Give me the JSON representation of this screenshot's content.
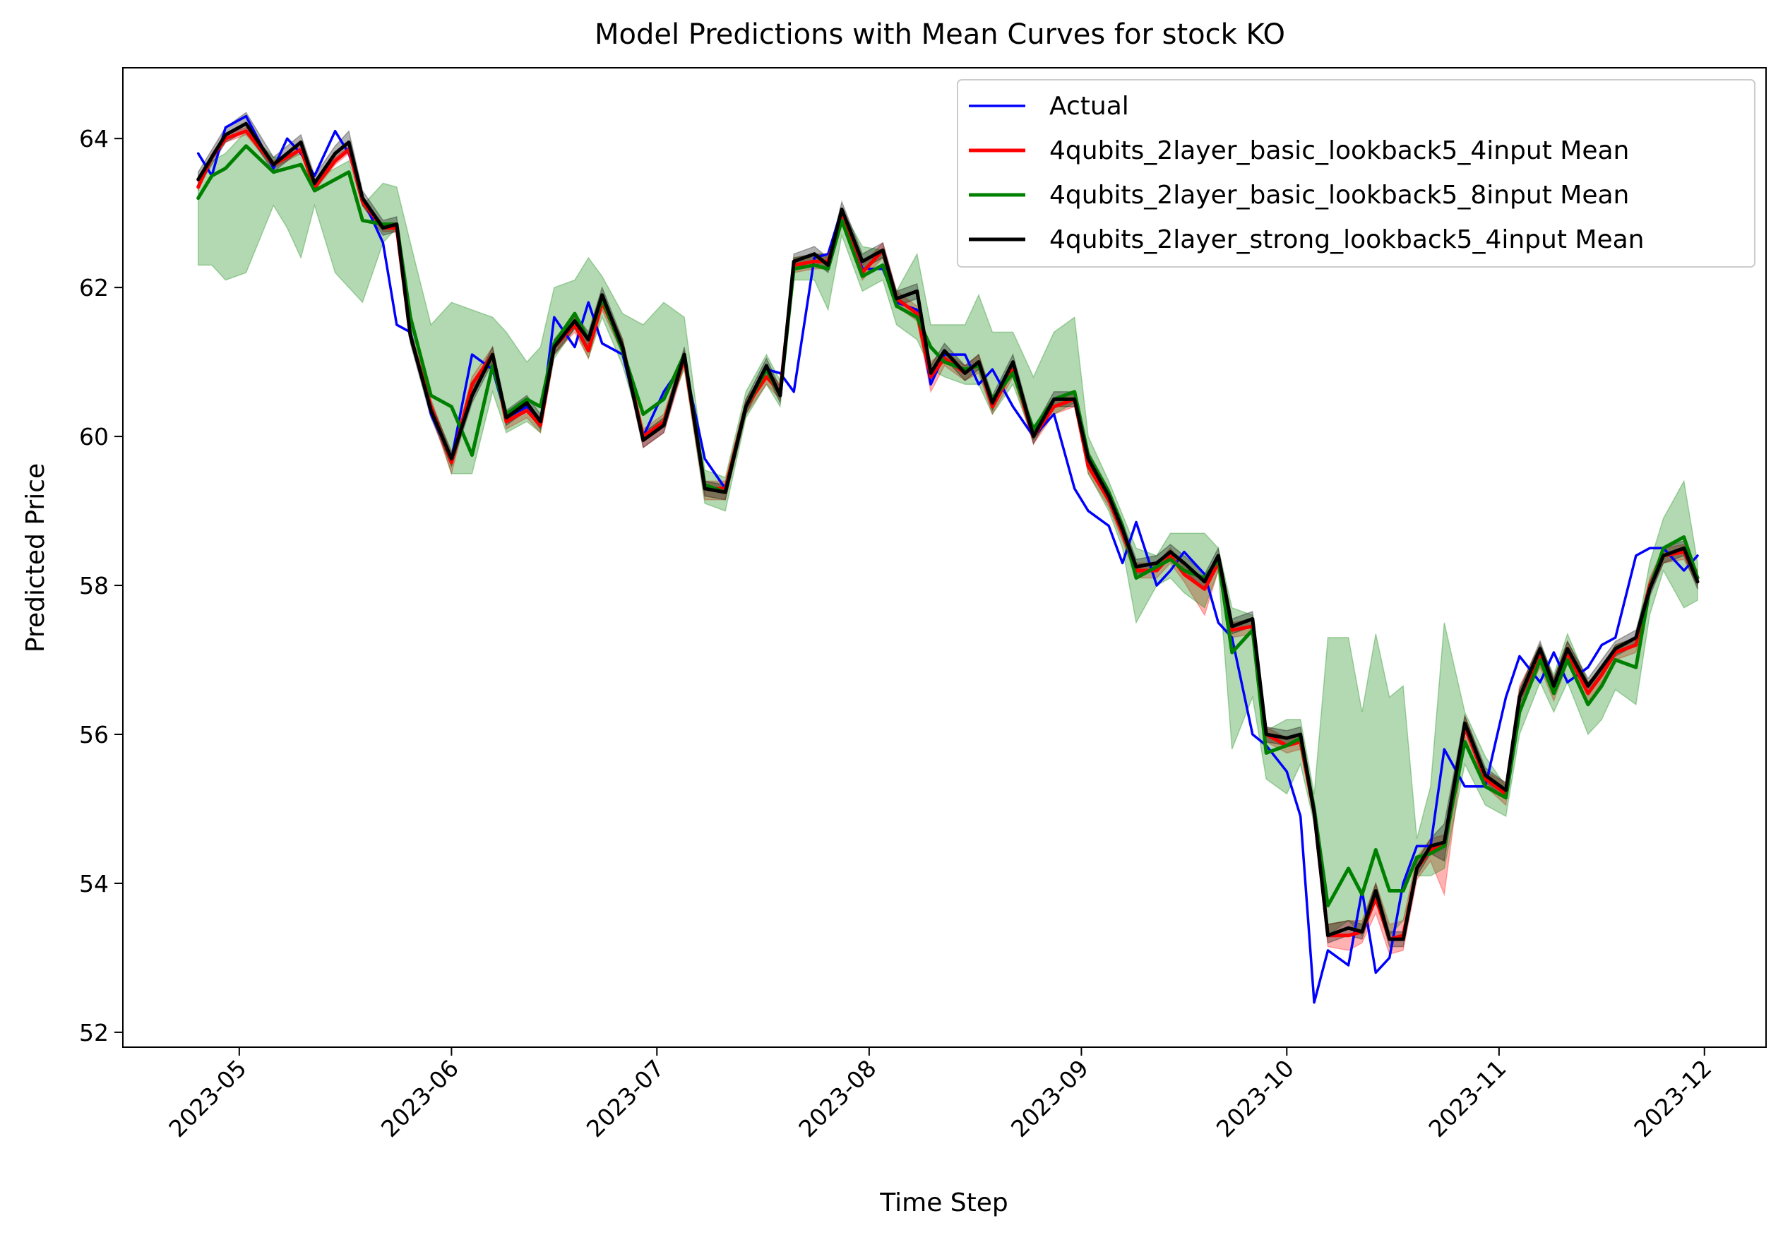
{
  "chart_data": {
    "type": "line",
    "title": "Model Predictions with Mean Curves for stock KO",
    "xlabel": "Time Step",
    "ylabel": "Predicted Price",
    "x_ticks": [
      "2023-05",
      "2023-06",
      "2023-07",
      "2023-08",
      "2023-09",
      "2023-10",
      "2023-11",
      "2023-12"
    ],
    "y_ticks": [
      52,
      54,
      56,
      58,
      60,
      62,
      64
    ],
    "xlim": [
      "2023-04-14",
      "2023-12-10"
    ],
    "ylim": [
      51.8,
      64.95
    ],
    "grid": false,
    "legend_position": "top-right",
    "x": [
      "2023-04-25",
      "2023-04-27",
      "2023-04-29",
      "2023-05-02",
      "2023-05-06",
      "2023-05-08",
      "2023-05-10",
      "2023-05-12",
      "2023-05-15",
      "2023-05-17",
      "2023-05-19",
      "2023-05-22",
      "2023-05-24",
      "2023-05-26",
      "2023-05-29",
      "2023-06-01",
      "2023-06-04",
      "2023-06-07",
      "2023-06-09",
      "2023-06-12",
      "2023-06-14",
      "2023-06-16",
      "2023-06-19",
      "2023-06-21",
      "2023-06-23",
      "2023-06-26",
      "2023-06-29",
      "2023-07-02",
      "2023-07-05",
      "2023-07-08",
      "2023-07-11",
      "2023-07-14",
      "2023-07-17",
      "2023-07-19",
      "2023-07-21",
      "2023-07-24",
      "2023-07-26",
      "2023-07-28",
      "2023-07-31",
      "2023-08-03",
      "2023-08-05",
      "2023-08-08",
      "2023-08-10",
      "2023-08-12",
      "2023-08-15",
      "2023-08-17",
      "2023-08-19",
      "2023-08-22",
      "2023-08-25",
      "2023-08-28",
      "2023-08-31",
      "2023-09-02",
      "2023-09-05",
      "2023-09-07",
      "2023-09-09",
      "2023-09-12",
      "2023-09-14",
      "2023-09-16",
      "2023-09-19",
      "2023-09-21",
      "2023-09-23",
      "2023-09-26",
      "2023-09-28",
      "2023-10-01",
      "2023-10-03",
      "2023-10-05",
      "2023-10-07",
      "2023-10-10",
      "2023-10-12",
      "2023-10-14",
      "2023-10-16",
      "2023-10-18",
      "2023-10-20",
      "2023-10-22",
      "2023-10-24",
      "2023-10-27",
      "2023-10-30",
      "2023-11-02",
      "2023-11-04",
      "2023-11-07",
      "2023-11-09",
      "2023-11-11",
      "2023-11-14",
      "2023-11-16",
      "2023-11-18",
      "2023-11-21",
      "2023-11-23",
      "2023-11-25",
      "2023-11-28",
      "2023-11-30"
    ],
    "series": [
      {
        "name": "Actual",
        "color": "#0000ff",
        "values": [
          63.8,
          63.5,
          64.15,
          64.3,
          63.6,
          64.0,
          63.8,
          63.5,
          64.1,
          63.8,
          63.2,
          62.6,
          61.5,
          61.4,
          60.3,
          59.7,
          61.1,
          60.9,
          60.25,
          60.4,
          60.15,
          61.6,
          61.2,
          61.8,
          61.25,
          61.1,
          60.0,
          60.6,
          61.0,
          59.7,
          59.3,
          60.4,
          60.9,
          60.85,
          60.6,
          62.4,
          62.45,
          63.05,
          62.25,
          62.25,
          61.8,
          61.7,
          60.7,
          61.1,
          61.1,
          60.7,
          60.9,
          60.4,
          60.0,
          60.3,
          59.3,
          59.0,
          58.8,
          58.3,
          58.85,
          58.0,
          58.2,
          58.45,
          58.15,
          57.5,
          57.3,
          56.0,
          55.85,
          55.5,
          54.9,
          52.4,
          53.1,
          52.9,
          53.9,
          52.8,
          53.0,
          54.0,
          54.5,
          54.5,
          55.8,
          55.3,
          55.3,
          56.5,
          57.05,
          56.7,
          57.1,
          56.7,
          56.9,
          57.2,
          57.3,
          58.4,
          58.5,
          58.5,
          58.2,
          58.4
        ]
      },
      {
        "name": "4qubits_2layer_basic_lookback5_4input Mean",
        "color": "#ff0000",
        "values": [
          63.35,
          63.75,
          64.0,
          64.1,
          63.65,
          63.75,
          63.85,
          63.35,
          63.7,
          63.85,
          63.15,
          62.8,
          62.8,
          61.35,
          60.4,
          59.65,
          60.7,
          61.1,
          60.2,
          60.35,
          60.15,
          61.2,
          61.5,
          61.15,
          61.8,
          61.2,
          60.0,
          60.2,
          61.05,
          59.3,
          59.3,
          60.4,
          60.8,
          60.6,
          62.3,
          62.35,
          62.35,
          62.95,
          62.2,
          62.5,
          61.85,
          61.65,
          60.8,
          61.05,
          60.85,
          61.0,
          60.4,
          60.9,
          60.0,
          60.4,
          60.5,
          59.6,
          59.15,
          58.7,
          58.2,
          58.2,
          58.4,
          58.15,
          57.95,
          58.3,
          57.4,
          57.45,
          56.0,
          55.85,
          55.9,
          54.95,
          53.3,
          53.3,
          53.35,
          53.8,
          53.25,
          53.3,
          54.2,
          54.45,
          54.5,
          56.1,
          55.4,
          55.2,
          56.5,
          57.05,
          56.6,
          57.1,
          56.55,
          56.8,
          57.1,
          57.2,
          58.0,
          58.4,
          58.45,
          58.1
        ]
      },
      {
        "name": "4qubits_2layer_basic_lookback5_8input Mean",
        "color": "#008000",
        "values": [
          63.2,
          63.5,
          63.6,
          63.9,
          63.55,
          63.6,
          63.65,
          63.3,
          63.45,
          63.55,
          62.9,
          62.85,
          62.85,
          61.6,
          60.55,
          60.4,
          59.75,
          60.95,
          60.3,
          60.5,
          60.4,
          61.25,
          61.65,
          61.3,
          61.85,
          61.15,
          60.3,
          60.5,
          61.1,
          59.35,
          59.25,
          60.4,
          60.9,
          60.55,
          62.25,
          62.3,
          62.25,
          62.9,
          62.15,
          62.3,
          61.75,
          61.6,
          61.2,
          61.0,
          60.9,
          60.95,
          60.5,
          60.85,
          60.1,
          60.5,
          60.6,
          59.75,
          59.25,
          58.8,
          58.1,
          58.25,
          58.35,
          58.2,
          58.1,
          58.35,
          57.1,
          57.4,
          55.75,
          55.85,
          55.95,
          55.0,
          53.7,
          54.2,
          53.85,
          54.45,
          53.9,
          53.9,
          54.35,
          54.4,
          54.5,
          55.9,
          55.3,
          55.15,
          56.3,
          57.0,
          56.55,
          57.0,
          56.4,
          56.65,
          57.0,
          56.9,
          57.95,
          58.5,
          58.65,
          58.1
        ]
      },
      {
        "name": "4qubits_2layer_strong_lookback5_4input Mean",
        "color": "#000000",
        "values": [
          63.45,
          63.75,
          64.05,
          64.2,
          63.65,
          63.8,
          63.95,
          63.4,
          63.8,
          63.95,
          63.2,
          62.8,
          62.85,
          61.35,
          60.35,
          59.7,
          60.55,
          61.1,
          60.25,
          60.45,
          60.2,
          61.2,
          61.55,
          61.3,
          61.9,
          61.2,
          59.95,
          60.15,
          61.1,
          59.3,
          59.25,
          60.4,
          60.95,
          60.55,
          62.35,
          62.45,
          62.3,
          63.05,
          62.35,
          62.5,
          61.85,
          61.95,
          60.85,
          61.15,
          60.85,
          61.0,
          60.45,
          61.0,
          60.0,
          60.5,
          60.5,
          59.7,
          59.2,
          58.75,
          58.25,
          58.3,
          58.45,
          58.3,
          58.05,
          58.4,
          57.45,
          57.55,
          56.0,
          55.95,
          56.0,
          54.95,
          53.3,
          53.4,
          53.35,
          53.9,
          53.25,
          53.25,
          54.2,
          54.5,
          54.55,
          56.15,
          55.45,
          55.25,
          56.5,
          57.15,
          56.65,
          57.15,
          56.65,
          56.9,
          57.15,
          57.3,
          57.95,
          58.4,
          58.5,
          58.05
        ]
      }
    ],
    "bands": [
      {
        "series": "4qubits_2layer_basic_lookback5_4input Mean",
        "color": "#ff0000",
        "lower": [
          63.3,
          63.7,
          63.95,
          64.05,
          63.6,
          63.7,
          63.8,
          63.3,
          63.65,
          63.8,
          63.1,
          62.75,
          62.75,
          61.3,
          60.3,
          59.5,
          60.6,
          61.0,
          60.1,
          60.25,
          60.05,
          61.1,
          61.4,
          61.05,
          61.7,
          61.1,
          59.85,
          60.05,
          60.95,
          59.15,
          59.15,
          60.3,
          60.7,
          60.5,
          62.2,
          62.25,
          62.25,
          62.85,
          62.1,
          62.4,
          61.75,
          61.55,
          60.6,
          60.95,
          60.75,
          60.85,
          60.3,
          60.8,
          59.9,
          60.3,
          60.4,
          59.5,
          59.05,
          58.6,
          58.1,
          58.1,
          58.3,
          58.05,
          57.6,
          58.2,
          57.3,
          57.35,
          55.9,
          55.75,
          55.8,
          54.85,
          53.15,
          53.1,
          53.2,
          53.6,
          53.05,
          53.1,
          54.05,
          54.3,
          53.85,
          55.95,
          55.3,
          55.05,
          56.35,
          56.9,
          56.45,
          56.95,
          56.4,
          56.7,
          57.0,
          57.1,
          57.9,
          58.3,
          58.35,
          58.0
        ],
        "upper": [
          63.4,
          63.8,
          64.05,
          64.15,
          63.7,
          63.8,
          63.9,
          63.4,
          63.75,
          63.9,
          63.2,
          62.85,
          62.85,
          61.4,
          60.5,
          59.75,
          60.8,
          61.2,
          60.3,
          60.45,
          60.25,
          61.3,
          61.6,
          61.25,
          61.9,
          61.3,
          60.1,
          60.3,
          61.15,
          59.4,
          59.4,
          60.5,
          60.9,
          60.7,
          62.4,
          62.45,
          62.45,
          63.05,
          62.3,
          62.6,
          61.95,
          61.75,
          61.0,
          61.15,
          60.95,
          61.1,
          60.5,
          61.0,
          60.1,
          60.5,
          60.6,
          59.7,
          59.25,
          58.8,
          58.3,
          58.3,
          58.5,
          58.25,
          58.05,
          58.4,
          57.5,
          57.55,
          56.1,
          55.95,
          56.0,
          55.05,
          53.45,
          53.5,
          53.5,
          54.0,
          53.45,
          53.5,
          54.35,
          54.6,
          54.65,
          56.25,
          55.5,
          55.35,
          56.65,
          57.2,
          56.75,
          57.25,
          56.7,
          56.9,
          57.2,
          57.3,
          58.1,
          58.5,
          58.55,
          58.2
        ]
      },
      {
        "series": "4qubits_2layer_basic_lookback5_8input Mean",
        "color": "#008000",
        "lower": [
          62.3,
          62.3,
          62.1,
          62.2,
          63.1,
          62.8,
          62.4,
          63.1,
          62.2,
          62.0,
          61.8,
          62.6,
          62.8,
          61.4,
          60.4,
          59.5,
          59.5,
          60.6,
          60.05,
          60.2,
          60.05,
          61.05,
          61.45,
          61.05,
          61.6,
          60.95,
          60.0,
          60.25,
          60.9,
          59.1,
          59.0,
          60.25,
          60.7,
          60.4,
          62.1,
          62.1,
          61.7,
          62.7,
          61.95,
          62.1,
          61.5,
          61.3,
          60.9,
          60.8,
          60.7,
          60.7,
          60.3,
          60.7,
          59.95,
          60.3,
          60.45,
          59.5,
          59.0,
          58.5,
          57.5,
          58.0,
          58.1,
          57.9,
          57.7,
          58.2,
          55.8,
          56.5,
          55.4,
          55.2,
          55.6,
          54.8,
          53.3,
          53.5,
          53.3,
          53.8,
          53.3,
          53.5,
          54.1,
          54.1,
          54.2,
          55.6,
          55.05,
          54.9,
          56.0,
          56.7,
          56.3,
          56.7,
          56.0,
          56.2,
          56.6,
          56.4,
          57.6,
          58.2,
          57.7,
          57.8
        ],
        "upper": [
          63.4,
          63.7,
          63.8,
          64.1,
          63.75,
          63.75,
          63.8,
          63.45,
          63.6,
          63.7,
          63.1,
          63.4,
          63.35,
          62.6,
          61.5,
          61.8,
          61.7,
          61.6,
          61.4,
          61.0,
          61.2,
          62.0,
          62.1,
          62.4,
          62.15,
          61.65,
          61.5,
          61.8,
          61.6,
          59.55,
          59.45,
          60.6,
          61.1,
          60.75,
          62.4,
          62.45,
          62.45,
          63.05,
          62.55,
          62.5,
          61.95,
          62.45,
          61.5,
          61.5,
          61.5,
          61.9,
          61.4,
          61.4,
          60.8,
          61.4,
          61.6,
          60.0,
          59.4,
          58.95,
          58.5,
          58.4,
          58.7,
          58.7,
          58.7,
          58.5,
          57.7,
          57.6,
          56.05,
          56.2,
          56.2,
          55.2,
          57.3,
          57.3,
          56.3,
          57.35,
          56.5,
          56.65,
          54.6,
          55.3,
          57.5,
          56.3,
          55.7,
          55.3,
          56.6,
          57.2,
          56.8,
          57.35,
          56.7,
          56.85,
          57.2,
          57.3,
          58.3,
          58.9,
          59.4,
          58.3
        ]
      },
      {
        "series": "4qubits_2layer_strong_lookback5_4input Mean",
        "color": "#000000",
        "lower": [
          63.35,
          63.65,
          63.95,
          64.1,
          63.55,
          63.7,
          63.85,
          63.3,
          63.7,
          63.85,
          63.1,
          62.7,
          62.75,
          61.25,
          60.25,
          59.6,
          60.45,
          61.0,
          60.15,
          60.35,
          60.1,
          61.1,
          61.45,
          61.2,
          61.8,
          61.1,
          59.85,
          60.05,
          61.0,
          59.2,
          59.15,
          60.3,
          60.85,
          60.45,
          62.25,
          62.35,
          62.2,
          62.95,
          62.25,
          62.4,
          61.75,
          61.85,
          60.75,
          61.05,
          60.75,
          60.9,
          60.35,
          60.9,
          59.9,
          60.4,
          60.4,
          59.6,
          59.1,
          58.65,
          58.15,
          58.2,
          58.35,
          58.2,
          57.95,
          58.3,
          57.35,
          57.45,
          55.9,
          55.85,
          55.9,
          54.85,
          53.2,
          53.3,
          53.25,
          53.8,
          53.15,
          53.15,
          54.1,
          54.4,
          54.3,
          56.05,
          55.35,
          55.15,
          56.4,
          57.05,
          56.55,
          57.05,
          56.55,
          56.8,
          57.05,
          57.2,
          57.85,
          58.3,
          58.4,
          57.95
        ],
        "upper": [
          63.55,
          63.85,
          64.15,
          64.35,
          63.75,
          63.9,
          64.05,
          63.5,
          63.9,
          64.1,
          63.3,
          62.9,
          62.95,
          61.45,
          60.45,
          59.8,
          60.65,
          61.2,
          60.35,
          60.55,
          60.3,
          61.3,
          61.65,
          61.4,
          62.0,
          61.3,
          60.05,
          60.25,
          61.2,
          59.4,
          59.35,
          60.5,
          61.05,
          60.65,
          62.45,
          62.55,
          62.4,
          63.15,
          62.45,
          62.6,
          61.95,
          62.05,
          60.95,
          61.25,
          60.95,
          61.1,
          60.55,
          61.1,
          60.1,
          60.6,
          60.6,
          59.8,
          59.3,
          58.85,
          58.35,
          58.4,
          58.55,
          58.4,
          58.15,
          58.5,
          57.55,
          57.65,
          56.1,
          56.05,
          56.1,
          55.1,
          53.45,
          53.5,
          53.45,
          54.0,
          53.35,
          53.35,
          54.3,
          54.6,
          54.8,
          56.25,
          55.55,
          55.35,
          56.6,
          57.25,
          56.75,
          57.25,
          56.75,
          57.0,
          57.25,
          57.4,
          58.05,
          58.5,
          58.6,
          58.15
        ]
      }
    ]
  }
}
